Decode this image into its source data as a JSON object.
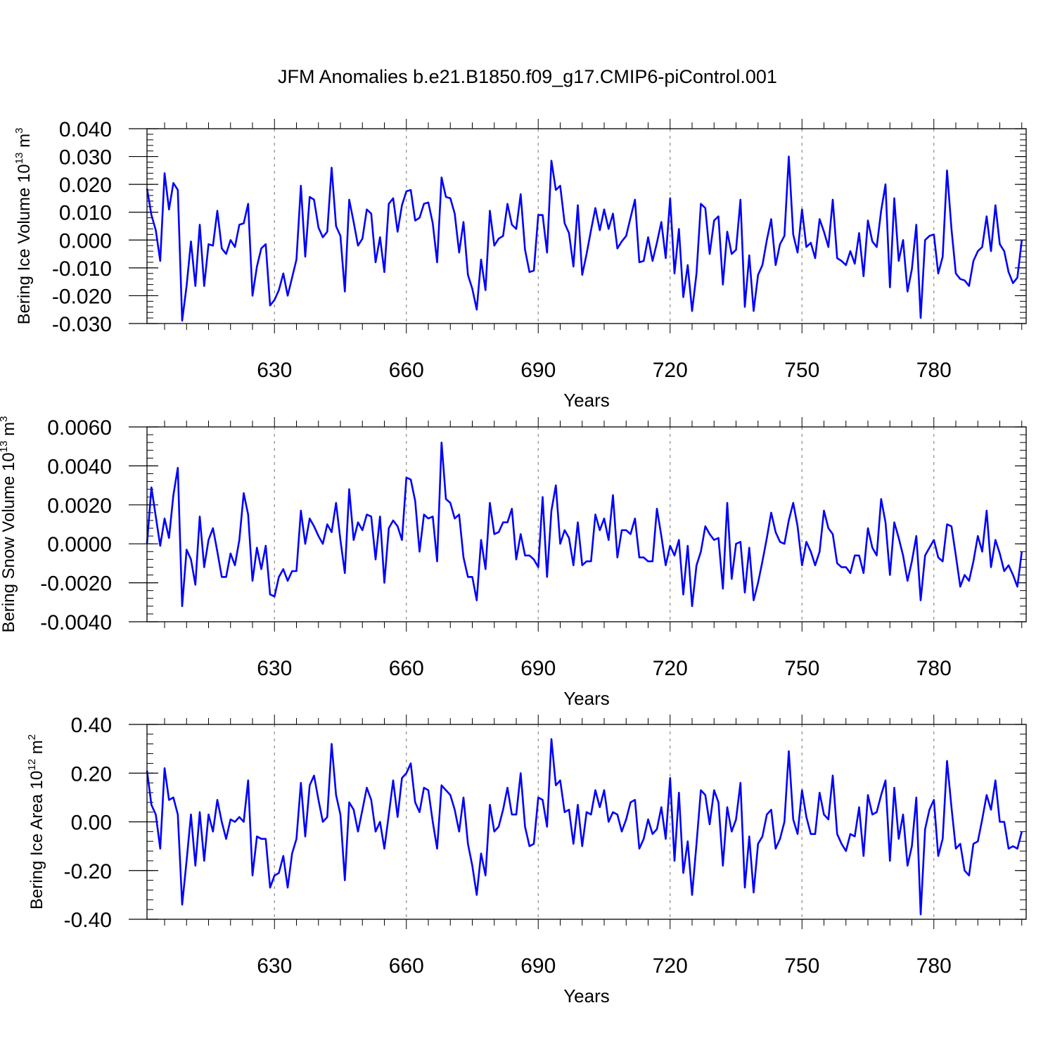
{
  "title": "JFM Anomalies b.e21.B1850.f09_g17.CMIP6-piControl.001",
  "colors": {
    "series": "#0000ff",
    "grid": "#888888",
    "axis": "#000000"
  },
  "chart_data": [
    {
      "type": "line",
      "ylabel_main": "Bering Ice Volume 10",
      "ylabel_exp": "13",
      "ylabel_unit": " m",
      "ylabel_unit_exp": "3",
      "xlabel": "Years",
      "xlim": [
        601,
        801
      ],
      "ylim": [
        -0.03,
        0.04
      ],
      "yticks": [
        -0.03,
        -0.02,
        -0.01,
        0.0,
        0.01,
        0.02,
        0.03,
        0.04
      ],
      "ytick_labels": [
        "-0.030",
        "-0.020",
        "-0.010",
        "0.000",
        "0.010",
        "0.020",
        "0.030",
        "0.040"
      ],
      "yminor": 0.002,
      "xticks": [
        630,
        660,
        690,
        720,
        750,
        780
      ],
      "xtick_labels": [
        "630",
        "660",
        "690",
        "720",
        "750",
        "780"
      ],
      "x_start": 601,
      "values": [
        0.0185,
        0.009,
        0.0035,
        -0.0075,
        0.024,
        0.011,
        0.0205,
        0.018,
        -0.029,
        -0.0165,
        -0.0005,
        -0.0165,
        0.0055,
        -0.0165,
        -0.0015,
        -0.002,
        0.0105,
        -0.003,
        -0.005,
        0.0,
        -0.0025,
        0.0055,
        0.006,
        0.013,
        -0.02,
        -0.0095,
        -0.003,
        -0.0015,
        -0.0235,
        -0.0215,
        -0.018,
        -0.012,
        -0.02,
        -0.0135,
        -0.007,
        0.0195,
        -0.006,
        0.0155,
        0.0145,
        0.0045,
        0.001,
        0.003,
        0.026,
        0.005,
        0.0015,
        -0.0185,
        0.0145,
        0.0065,
        -0.002,
        0.0005,
        0.011,
        0.0095,
        -0.008,
        0.001,
        -0.0115,
        0.013,
        0.015,
        0.003,
        0.0125,
        0.0175,
        0.018,
        0.007,
        0.008,
        0.013,
        0.0135,
        0.006,
        -0.008,
        0.0225,
        0.0155,
        0.015,
        0.0095,
        -0.0045,
        0.0065,
        -0.0125,
        -0.0175,
        -0.025,
        -0.007,
        -0.018,
        0.0105,
        -0.002,
        0.0005,
        0.0015,
        0.013,
        0.0055,
        0.004,
        0.0165,
        -0.0035,
        -0.0115,
        -0.011,
        0.009,
        0.009,
        -0.0045,
        0.0285,
        0.018,
        0.0195,
        0.006,
        0.0025,
        -0.0095,
        0.0125,
        -0.0125,
        -0.005,
        0.0035,
        0.0115,
        0.0035,
        0.011,
        0.004,
        0.0095,
        -0.003,
        -0.0005,
        0.0015,
        0.008,
        0.0145,
        -0.008,
        -0.0075,
        0.001,
        -0.0075,
        -0.001,
        0.0065,
        -0.0065,
        0.015,
        -0.012,
        0.004,
        -0.0205,
        -0.009,
        -0.0255,
        -0.012,
        0.013,
        0.0115,
        -0.005,
        0.007,
        0.0085,
        -0.016,
        0.003,
        -0.005,
        -0.0035,
        0.0145,
        -0.024,
        -0.0055,
        -0.0255,
        -0.0125,
        -0.009,
        0.0,
        0.0075,
        -0.009,
        -0.0015,
        0.0015,
        0.03,
        0.002,
        -0.0045,
        0.011,
        -0.0025,
        -0.001,
        -0.0065,
        0.0075,
        0.003,
        -0.0025,
        0.0145,
        -0.0065,
        -0.0075,
        -0.009,
        -0.004,
        -0.0085,
        0.0025,
        -0.013,
        0.007,
        -0.0005,
        -0.0025,
        0.0105,
        0.02,
        -0.017,
        0.015,
        -0.0075,
        0.0,
        -0.0185,
        -0.0105,
        0.0055,
        -0.028,
        0.0,
        0.0015,
        0.002,
        -0.012,
        -0.006,
        0.025,
        0.004,
        -0.012,
        -0.014,
        -0.0145,
        -0.0165,
        -0.0075,
        -0.004,
        -0.0025,
        0.0085,
        -0.004,
        0.0125,
        -0.0015,
        -0.004,
        -0.0115,
        -0.0155,
        -0.0135,
        0.0
      ]
    },
    {
      "type": "line",
      "ylabel_main": "Bering Snow Volume 10",
      "ylabel_exp": "13",
      "ylabel_unit": " m",
      "ylabel_unit_exp": "3",
      "xlabel": "Years",
      "xlim": [
        601,
        801
      ],
      "ylim": [
        -0.004,
        0.006
      ],
      "yticks": [
        -0.004,
        -0.002,
        0.0,
        0.002,
        0.004,
        0.006
      ],
      "ytick_labels": [
        "-0.0040",
        "-0.0020",
        "0.0000",
        "0.0020",
        "0.0040",
        "0.0060"
      ],
      "yminor": 0.0004,
      "xticks": [
        630,
        660,
        690,
        720,
        750,
        780
      ],
      "xtick_labels": [
        "630",
        "660",
        "690",
        "720",
        "750",
        "780"
      ],
      "x_start": 601,
      "values": [
        0.0,
        0.0029,
        0.0014,
        -0.0001,
        0.0013,
        0.0003,
        0.0025,
        0.0039,
        -0.0032,
        -0.0003,
        -0.0008,
        -0.0021,
        0.0014,
        -0.0012,
        0.0002,
        0.0008,
        -0.0004,
        -0.0017,
        -0.0017,
        -0.0005,
        -0.0011,
        0.0002,
        0.0026,
        0.0015,
        -0.0019,
        -0.0002,
        -0.0013,
        -0.0001,
        -0.0026,
        -0.0027,
        -0.0017,
        -0.0013,
        -0.0019,
        -0.0014,
        -0.0014,
        0.0017,
        0.0,
        0.0013,
        0.0009,
        0.0004,
        0.0,
        0.001,
        0.0006,
        0.0021,
        0.0002,
        -0.0015,
        0.0028,
        0.0002,
        0.0011,
        0.0007,
        0.0015,
        0.0014,
        -0.0008,
        0.0014,
        -0.002,
        0.0008,
        0.0012,
        0.0009,
        0.0002,
        0.0034,
        0.0033,
        0.0022,
        -0.0004,
        0.0015,
        0.0013,
        0.0014,
        -0.0009,
        0.0052,
        0.0023,
        0.0021,
        0.0013,
        0.0015,
        -0.0007,
        -0.0017,
        -0.0017,
        -0.0029,
        0.0002,
        -0.0013,
        0.0021,
        0.0005,
        0.0006,
        0.0011,
        0.0011,
        0.0018,
        -0.0008,
        0.0005,
        -0.0006,
        -0.0006,
        -0.0008,
        -0.0012,
        0.0024,
        -0.0017,
        0.0017,
        0.003,
        0.0,
        0.0007,
        0.0003,
        -0.0011,
        0.0011,
        -0.0011,
        -0.0009,
        -0.0009,
        0.0015,
        0.0007,
        0.0013,
        0.0002,
        0.0025,
        -0.0007,
        0.0007,
        0.0007,
        0.0005,
        0.0013,
        -0.0007,
        -0.0007,
        -0.0009,
        -0.0009,
        0.0018,
        0.0004,
        -0.0011,
        -0.0001,
        -0.0006,
        0.0002,
        -0.0026,
        -0.0001,
        -0.0032,
        -0.0011,
        -0.0004,
        0.0009,
        0.0005,
        0.0002,
        0.0003,
        -0.0023,
        0.0021,
        -0.0018,
        0.0,
        0.0001,
        -0.0025,
        -0.0002,
        -0.0029,
        -0.002,
        -0.0009,
        0.0003,
        0.0016,
        0.0006,
        0.0001,
        0.0,
        0.0012,
        0.0021,
        0.0009,
        -0.0011,
        0.0001,
        -0.0004,
        -0.0011,
        -0.0004,
        0.0017,
        0.0008,
        0.0005,
        -0.001,
        -0.0012,
        -0.0012,
        -0.0015,
        -0.0006,
        -0.0006,
        -0.0015,
        0.0008,
        -0.0002,
        -0.0006,
        0.0023,
        0.0011,
        -0.0016,
        0.0011,
        0.0003,
        -0.0006,
        -0.0019,
        -0.0009,
        0.0004,
        -0.0029,
        -0.0006,
        -0.0002,
        0.0002,
        -0.0007,
        -0.0009,
        0.001,
        0.0009,
        -0.0006,
        -0.0022,
        -0.0016,
        -0.0019,
        -0.0009,
        0.0004,
        -0.0004,
        0.0017,
        -0.0012,
        0.0002,
        -0.0005,
        -0.0014,
        -0.0011,
        -0.0016,
        -0.0022,
        -0.0004
      ]
    },
    {
      "type": "line",
      "ylabel_main": "Bering Ice Area 10",
      "ylabel_exp": "12",
      "ylabel_unit": " m",
      "ylabel_unit_exp": "2",
      "xlabel": "Years",
      "xlim": [
        601,
        801
      ],
      "ylim": [
        -0.4,
        0.4
      ],
      "yticks": [
        -0.4,
        -0.2,
        0.0,
        0.2,
        0.4
      ],
      "ytick_labels": [
        "-0.40",
        "-0.20",
        "0.00",
        "0.20",
        "0.40"
      ],
      "yminor": 0.04,
      "xticks": [
        630,
        660,
        690,
        720,
        750,
        780
      ],
      "xtick_labels": [
        "630",
        "660",
        "690",
        "720",
        "750",
        "780"
      ],
      "x_start": 601,
      "values": [
        0.21,
        0.07,
        0.03,
        -0.11,
        0.22,
        0.09,
        0.1,
        0.03,
        -0.34,
        -0.16,
        0.03,
        -0.18,
        0.04,
        -0.16,
        0.03,
        -0.04,
        0.09,
        0.0,
        -0.07,
        0.01,
        0.0,
        0.02,
        0.0,
        0.17,
        -0.22,
        -0.06,
        -0.07,
        -0.07,
        -0.27,
        -0.22,
        -0.21,
        -0.14,
        -0.27,
        -0.13,
        -0.07,
        0.16,
        -0.06,
        0.15,
        0.19,
        0.09,
        0.0,
        0.02,
        0.32,
        0.11,
        0.03,
        -0.24,
        0.08,
        0.05,
        -0.04,
        0.05,
        0.14,
        0.09,
        -0.04,
        0.0,
        -0.11,
        0.03,
        0.17,
        0.02,
        0.18,
        0.2,
        0.24,
        0.08,
        0.04,
        0.14,
        0.13,
        0.0,
        -0.11,
        0.15,
        0.13,
        0.11,
        0.05,
        -0.04,
        0.1,
        -0.09,
        -0.18,
        -0.3,
        -0.13,
        -0.22,
        0.07,
        -0.04,
        -0.02,
        0.05,
        0.14,
        0.03,
        0.03,
        0.2,
        -0.02,
        -0.1,
        -0.09,
        0.1,
        0.09,
        -0.02,
        0.34,
        0.15,
        0.17,
        0.04,
        0.05,
        -0.09,
        0.07,
        -0.1,
        0.04,
        0.03,
        0.13,
        0.06,
        0.13,
        0.0,
        0.04,
        0.03,
        -0.04,
        0.01,
        0.08,
        0.09,
        -0.11,
        -0.07,
        0.01,
        -0.05,
        -0.03,
        0.06,
        -0.07,
        0.18,
        -0.16,
        0.12,
        -0.21,
        -0.08,
        -0.3,
        -0.09,
        0.13,
        0.11,
        -0.01,
        0.13,
        0.08,
        -0.18,
        0.06,
        -0.04,
        0.01,
        0.16,
        -0.27,
        -0.06,
        -0.29,
        -0.09,
        -0.06,
        0.03,
        0.05,
        -0.11,
        -0.07,
        0.0,
        0.29,
        0.01,
        -0.05,
        0.13,
        0.02,
        -0.05,
        -0.05,
        0.12,
        0.03,
        0.01,
        0.19,
        -0.05,
        -0.09,
        -0.12,
        -0.05,
        -0.06,
        0.06,
        -0.14,
        0.11,
        0.03,
        0.04,
        0.11,
        0.17,
        -0.16,
        0.14,
        -0.07,
        0.03,
        -0.18,
        -0.1,
        0.1,
        -0.38,
        -0.03,
        0.05,
        0.09,
        -0.14,
        -0.07,
        0.25,
        0.06,
        -0.11,
        -0.09,
        -0.2,
        -0.22,
        -0.09,
        -0.08,
        0.01,
        0.11,
        0.05,
        0.17,
        0.0,
        0.0,
        -0.11,
        -0.1,
        -0.11,
        -0.04
      ]
    }
  ]
}
